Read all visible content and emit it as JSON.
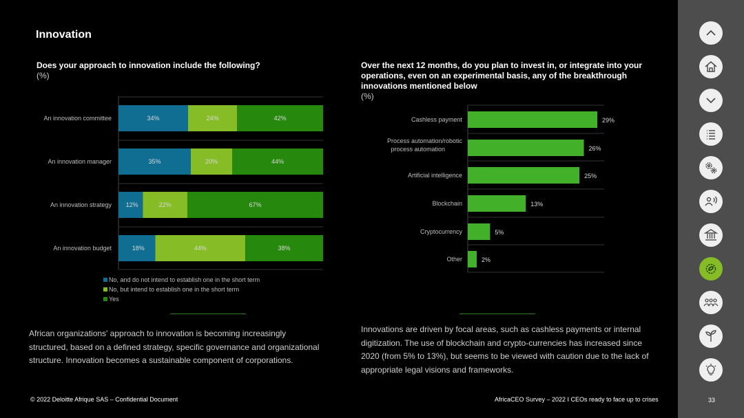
{
  "page": {
    "title": "Innovation",
    "footer_left": "© 2022 Deloitte Afrique SAS – Confidential Document",
    "footer_right": "AfricaCEO Survey – 2022 I CEOs ready to face up to crises",
    "page_number": "33"
  },
  "left": {
    "question": "Does your approach to innovation include the following?",
    "unit": "(%)",
    "paragraph": "African organizations' approach to innovation is becoming increasingly structured, based on a defined strategy, specific governance and organizational structure. Innovation becomes a sustainable component of corporations."
  },
  "right": {
    "question": "Over the next 12 months, do you plan to invest in, or integrate into your operations, even on an experimental basis, any of the breakthrough innovations mentioned below",
    "unit": "(%)",
    "paragraph": "Innovations are driven by focal areas, such as cashless payments or internal digitization. The use of blockchain and crypto-currencies has increased since 2020 (from 5% to 13%), but seems to be viewed with caution due to the lack of appropriate legal visions and frameworks."
  },
  "colors": {
    "blue": "#0f6e92",
    "lightgreen": "#86bc25",
    "darkgreen": "#26890d",
    "brightgreen": "#43b02a",
    "active": "#86bc25"
  },
  "chart_data": [
    {
      "type": "bar",
      "orientation": "horizontal",
      "stacked": true,
      "categories": [
        "An innovation committee",
        "An innovation manager",
        "An innovation strategy",
        "An innovation budget"
      ],
      "series": [
        {
          "name": "No, and do not intend to establish one in the short term",
          "values": [
            34,
            35,
            12,
            18
          ],
          "labels": [
            "34%",
            "35%",
            "12%",
            "18%"
          ]
        },
        {
          "name": "No, but intend to establish one in the short term",
          "values": [
            24,
            20,
            22,
            44
          ],
          "labels": [
            "24%",
            "20%",
            "22%",
            "44%"
          ]
        },
        {
          "name": "Yes",
          "values": [
            42,
            44,
            67,
            38
          ],
          "labels": [
            "42%",
            "44%",
            "67%",
            "38%"
          ]
        }
      ]
    },
    {
      "type": "bar",
      "orientation": "horizontal",
      "categories": [
        "Cashless payment",
        "Process automation/robotic process automation",
        "Artificial intelligence",
        "Blockchain",
        "Cryptocurrency",
        "Other"
      ],
      "values": [
        29,
        26,
        25,
        13,
        5,
        2
      ],
      "labels": [
        "29%",
        "26%",
        "25%",
        "13%",
        "5%",
        "2%"
      ],
      "xlim": [
        0,
        30
      ]
    }
  ],
  "nav": [
    {
      "name": "up-nav-button",
      "icon": "chevron-up-icon"
    },
    {
      "name": "home-nav-button",
      "icon": "home-icon"
    },
    {
      "name": "down-nav-button",
      "icon": "chevron-down-icon"
    },
    {
      "name": "contents-nav-button",
      "icon": "list-icon"
    },
    {
      "name": "operations-nav-button",
      "icon": "gears-icon"
    },
    {
      "name": "people-nav-button",
      "icon": "speaking-person-icon"
    },
    {
      "name": "institutions-nav-button",
      "icon": "bank-icon"
    },
    {
      "name": "innovation-nav-button",
      "icon": "gear-leaf-icon"
    },
    {
      "name": "community-nav-button",
      "icon": "people-group-icon"
    },
    {
      "name": "sustainability-nav-button",
      "icon": "plant-icon"
    },
    {
      "name": "ideas-nav-button",
      "icon": "lightbulb-icon"
    }
  ]
}
